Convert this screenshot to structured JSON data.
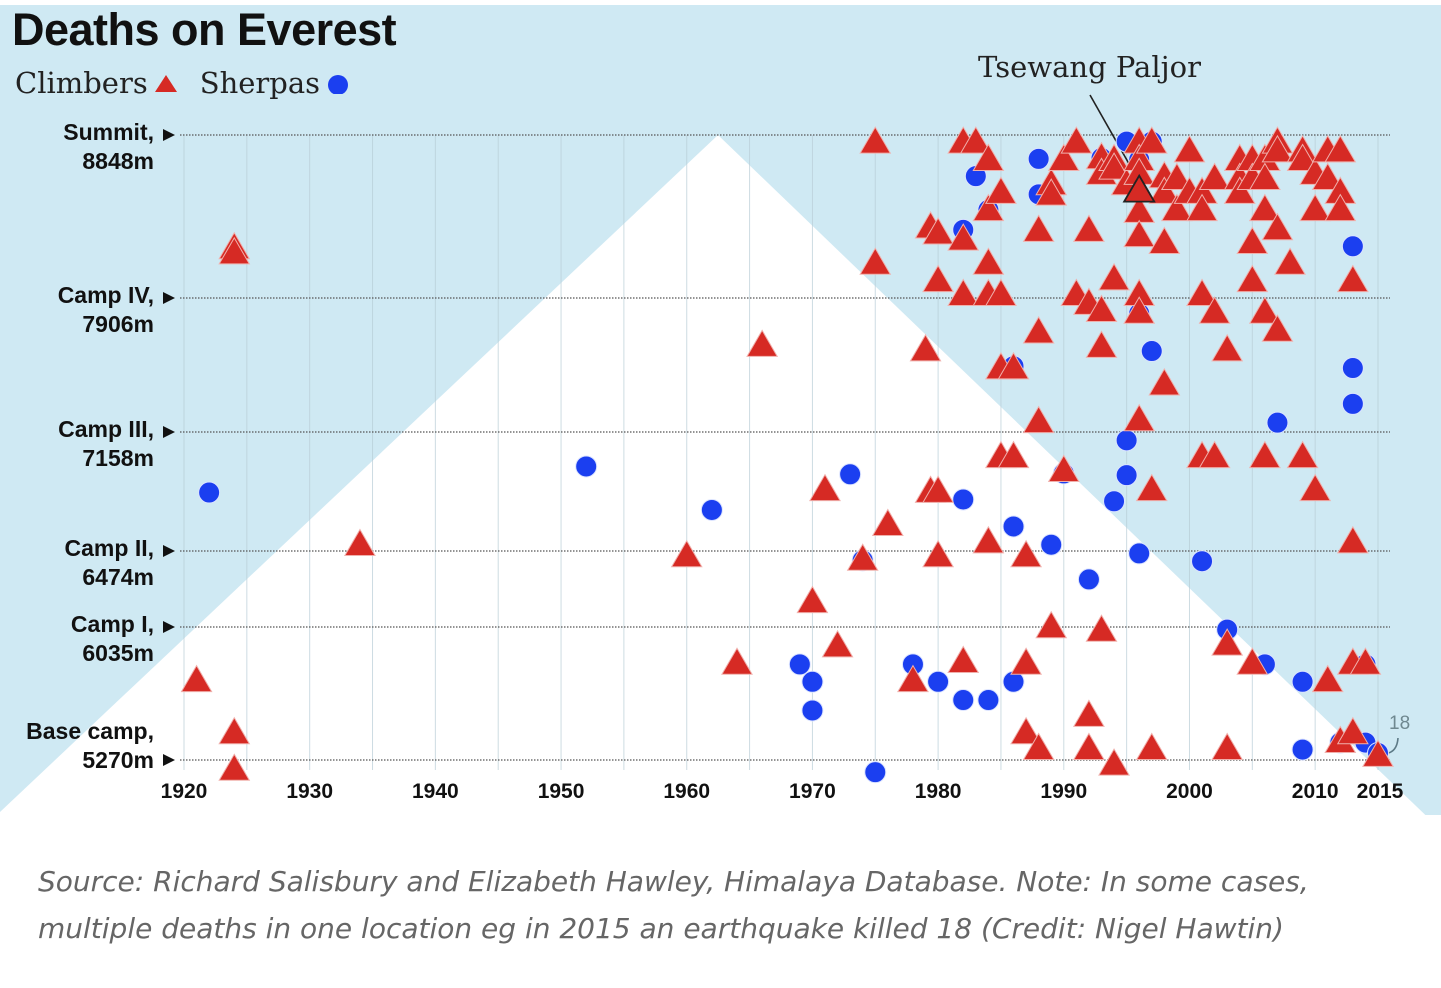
{
  "colors": {
    "sky": "#cfe9f3",
    "mountain": "#ffffff",
    "climber": "#d62a24",
    "sherpa": "#1b3ff0",
    "gridline": "#b8cdd6",
    "text": "#111111"
  },
  "chart_data": {
    "type": "scatter",
    "title": "Deaths on Everest",
    "xlabel": "",
    "ylabel": "",
    "xlim": [
      1920,
      2015
    ],
    "x_ticks": [
      1920,
      1930,
      1940,
      1950,
      1960,
      1970,
      1980,
      1990,
      2000,
      2010,
      2015
    ],
    "x_tick_labels": [
      "1920",
      "1930",
      "1940",
      "1950",
      "1960",
      "1970",
      "1980",
      "1990",
      "2000",
      "2010",
      "2015"
    ],
    "y_levels": [
      {
        "name": "Summit,",
        "altitude_label": "8848m",
        "altitude": 8848
      },
      {
        "name": "Camp IV,",
        "altitude_label": "7906m",
        "altitude": 7906
      },
      {
        "name": "Camp III,",
        "altitude_label": "7158m",
        "altitude": 7158
      },
      {
        "name": "Camp II,",
        "altitude_label": "6474m",
        "altitude": 6474
      },
      {
        "name": "Camp I,",
        "altitude_label": "6035m",
        "altitude": 6035
      },
      {
        "name": "Base camp,",
        "altitude_label": "5270m",
        "altitude": 5270
      }
    ],
    "grid": true,
    "legend": {
      "position": "top-left",
      "entries": [
        {
          "label": "Climbers",
          "marker": "triangle"
        },
        {
          "label": "Sherpas",
          "marker": "circle"
        }
      ]
    },
    "annotations": [
      {
        "text": "Tsewang Paljor",
        "year": 1996,
        "altitude": 8520
      },
      {
        "text": "18",
        "year": 2015,
        "altitude": 5290
      }
    ],
    "series": [
      {
        "name": "Climbers",
        "marker": "triangle",
        "points": [
          [
            1924,
            8190
          ],
          [
            1924,
            8160
          ],
          [
            1921,
            5720
          ],
          [
            1924,
            5420
          ],
          [
            1924,
            5210
          ],
          [
            1934,
            6505
          ],
          [
            1960,
            6440
          ],
          [
            1964,
            5820
          ],
          [
            1966,
            7635
          ],
          [
            1970,
            6175
          ],
          [
            1971,
            6820
          ],
          [
            1972,
            5920
          ],
          [
            1974,
            6420
          ],
          [
            1975,
            8800
          ],
          [
            1975,
            8100
          ],
          [
            1976,
            6620
          ],
          [
            1978,
            5720
          ],
          [
            1979,
            7610
          ],
          [
            1979.4,
            6810
          ],
          [
            1980,
            6810
          ],
          [
            1979.4,
            8310
          ],
          [
            1980,
            8275
          ],
          [
            1980,
            8000
          ],
          [
            1980,
            6440
          ],
          [
            1982,
            8800
          ],
          [
            1983,
            8800
          ],
          [
            1982,
            8240
          ],
          [
            1982,
            7920
          ],
          [
            1982,
            5830
          ],
          [
            1984,
            8700
          ],
          [
            1984,
            8410
          ],
          [
            1984,
            8100
          ],
          [
            1984,
            7920
          ],
          [
            1985,
            7920
          ],
          [
            1984,
            6520
          ],
          [
            1985,
            8510
          ],
          [
            1985,
            7510
          ],
          [
            1986,
            7510
          ],
          [
            1985,
            7010
          ],
          [
            1986,
            7010
          ],
          [
            1987,
            6440
          ],
          [
            1987,
            5820
          ],
          [
            1987,
            5420
          ],
          [
            1988,
            5330
          ],
          [
            1988,
            8290
          ],
          [
            1988,
            7710
          ],
          [
            1988,
            7210
          ],
          [
            1989,
            8560
          ],
          [
            1989,
            8500
          ],
          [
            1989,
            6030
          ],
          [
            1990,
            8700
          ],
          [
            1990,
            6930
          ],
          [
            1991,
            8800
          ],
          [
            1991,
            7920
          ],
          [
            1992,
            8290
          ],
          [
            1992,
            7870
          ],
          [
            1993,
            7830
          ],
          [
            1992,
            5520
          ],
          [
            1992,
            5330
          ],
          [
            1993,
            8710
          ],
          [
            1993,
            8620
          ],
          [
            1993,
            7630
          ],
          [
            1993,
            6010
          ],
          [
            1994,
            8700
          ],
          [
            1994,
            8650
          ],
          [
            1994,
            8010
          ],
          [
            1994,
            5240
          ],
          [
            1995,
            8560
          ],
          [
            1996,
            8800
          ],
          [
            1996,
            8700
          ],
          [
            1996,
            8620
          ],
          [
            1996,
            8400
          ],
          [
            1996,
            8260
          ],
          [
            1996,
            7920
          ],
          [
            1996,
            7820
          ],
          [
            1996,
            7220
          ],
          [
            1997,
            8800
          ],
          [
            1997,
            6820
          ],
          [
            1997,
            5330
          ],
          [
            1998,
            8600
          ],
          [
            1998,
            8510
          ],
          [
            1998,
            8220
          ],
          [
            1998,
            7420
          ],
          [
            1999,
            8590
          ],
          [
            1999,
            8410
          ],
          [
            2000,
            8750
          ],
          [
            2000,
            8510
          ],
          [
            2001,
            8510
          ],
          [
            2001,
            8410
          ],
          [
            2001,
            7920
          ],
          [
            2001,
            7010
          ],
          [
            2002,
            7010
          ],
          [
            2002,
            8590
          ],
          [
            2002,
            7820
          ],
          [
            2003,
            7610
          ],
          [
            2003,
            5930
          ],
          [
            2003,
            5330
          ],
          [
            2004,
            8700
          ],
          [
            2004,
            8590
          ],
          [
            2004,
            8510
          ],
          [
            2005,
            8700
          ],
          [
            2005,
            8590
          ],
          [
            2005,
            8220
          ],
          [
            2005,
            8000
          ],
          [
            2005,
            5820
          ],
          [
            2006,
            8700
          ],
          [
            2006,
            8590
          ],
          [
            2006,
            8410
          ],
          [
            2006,
            7820
          ],
          [
            2006,
            7010
          ],
          [
            2007,
            8800
          ],
          [
            2007,
            8750
          ],
          [
            2007,
            8300
          ],
          [
            2007,
            7720
          ],
          [
            2008,
            8100
          ],
          [
            2009,
            8750
          ],
          [
            2009,
            8700
          ],
          [
            2009,
            7010
          ],
          [
            2010,
            8620
          ],
          [
            2010,
            8410
          ],
          [
            2010,
            6820
          ],
          [
            2011,
            8750
          ],
          [
            2011,
            8590
          ],
          [
            2011,
            5720
          ],
          [
            2012,
            8750
          ],
          [
            2012,
            8510
          ],
          [
            2012,
            8410
          ],
          [
            2012,
            5370
          ],
          [
            2013,
            8000
          ],
          [
            2013,
            6520
          ],
          [
            2013,
            5820
          ],
          [
            2014,
            5820
          ],
          [
            2013,
            5420
          ],
          [
            2015,
            5290
          ]
        ]
      },
      {
        "name": "Sherpas",
        "marker": "circle",
        "points": [
          [
            1922,
            6810
          ],
          [
            1952,
            6960
          ],
          [
            1962,
            6710
          ],
          [
            1969,
            5820
          ],
          [
            1970,
            5720
          ],
          [
            1970,
            5555
          ],
          [
            1973,
            6915
          ],
          [
            1974,
            6420
          ],
          [
            1975,
            5200
          ],
          [
            1978,
            5820
          ],
          [
            1980,
            5720
          ],
          [
            1982,
            8300
          ],
          [
            1982,
            6770
          ],
          [
            1982,
            5615
          ],
          [
            1983,
            8610
          ],
          [
            1984,
            8415
          ],
          [
            1984,
            5615
          ],
          [
            1986,
            7525
          ],
          [
            1986,
            6615
          ],
          [
            1986,
            5720
          ],
          [
            1988,
            8710
          ],
          [
            1988,
            8505
          ],
          [
            1989,
            6510
          ],
          [
            1990,
            6920
          ],
          [
            1992,
            6310
          ],
          [
            1993,
            8715
          ],
          [
            1994,
            6760
          ],
          [
            1995,
            8810
          ],
          [
            1995,
            7110
          ],
          [
            1995,
            6910
          ],
          [
            1996,
            8705
          ],
          [
            1996,
            7820
          ],
          [
            1996,
            6460
          ],
          [
            1997,
            8810
          ],
          [
            1997,
            7610
          ],
          [
            2001,
            6415
          ],
          [
            2003,
            6020
          ],
          [
            2006,
            5820
          ],
          [
            2007,
            7210
          ],
          [
            2009,
            5720
          ],
          [
            2009,
            5330
          ],
          [
            2012,
            5370
          ],
          [
            2013,
            8205
          ],
          [
            2013,
            7515
          ],
          [
            2013,
            7315
          ],
          [
            2014,
            5820
          ],
          [
            2014,
            5370
          ],
          [
            2015,
            5310
          ]
        ]
      }
    ],
    "highlight_point": {
      "series": "Climbers",
      "year": 1996,
      "altitude": 8520,
      "label": "Tsewang Paljor"
    }
  },
  "source_text": "Source: Richard Salisbury and Elizabeth Hawley, Himalaya Database. Note: In some cases, multiple deaths in one location eg in 2015 an earthquake killed 18 (Credit: Nigel Hawtin)"
}
